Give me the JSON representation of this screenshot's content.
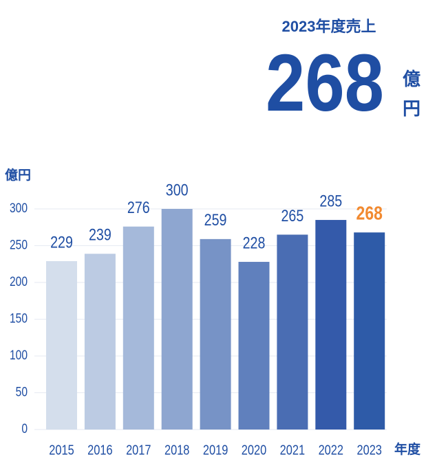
{
  "header": {
    "title": "2023年度売上",
    "value": 268,
    "unit_top": "億",
    "unit_bottom": "円"
  },
  "chart_data": {
    "type": "bar",
    "y_label": "億円",
    "x_label": "年度",
    "categories": [
      "2015",
      "2016",
      "2017",
      "2018",
      "2019",
      "2020",
      "2021",
      "2022",
      "2023"
    ],
    "values": [
      229,
      239,
      276,
      300,
      259,
      228,
      265,
      285,
      268
    ],
    "colors": [
      "#d4deec",
      "#bccbe3",
      "#a5b9da",
      "#8ea6d0",
      "#7793c6",
      "#6080bd",
      "#4a6db3",
      "#345aaa",
      "#2e5ba8"
    ],
    "label_colors": [
      "#1f4ea3",
      "#1f4ea3",
      "#1f4ea3",
      "#1f4ea3",
      "#1f4ea3",
      "#1f4ea3",
      "#1f4ea3",
      "#1f4ea3",
      "#f28a30"
    ],
    "ylim": [
      0,
      300
    ],
    "yticks": [
      0,
      50,
      100,
      150,
      200,
      250,
      300
    ],
    "grid": true
  }
}
